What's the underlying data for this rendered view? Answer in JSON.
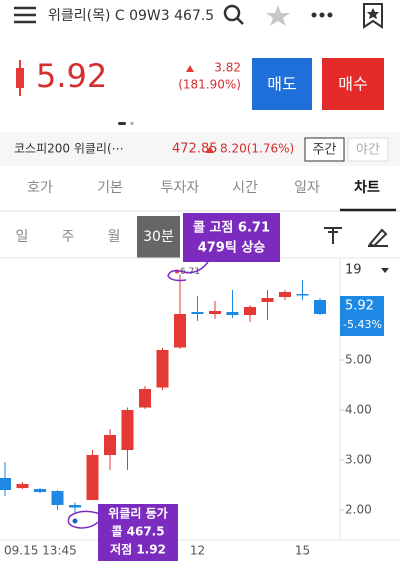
{
  "header": {
    "title": "위클리(목) C 09W3 467.5"
  },
  "quote": {
    "price": "5.92",
    "change": "3.82",
    "change_rate": "(181.90%)",
    "sell": "매도",
    "buy": "매수"
  },
  "underlying": {
    "name": "코스피200 위클리(⋯",
    "price": "472.85",
    "change": "8.20(1.76%)",
    "day": "주간",
    "night": "야간"
  },
  "tabs": [
    "호가",
    "기본",
    "투자자",
    "시간",
    "일자",
    "차트"
  ],
  "periods": [
    "일",
    "주",
    "월",
    "30분"
  ],
  "chart_data": {
    "type": "candlestick",
    "categories": [
      "09.15 13:45",
      null,
      null,
      null,
      null,
      null,
      null,
      null,
      null,
      null,
      null,
      "12",
      null,
      null,
      null,
      null,
      null,
      "15",
      null
    ],
    "open": [
      2.64,
      2.44,
      2.42,
      2.38,
      2.1,
      2.2,
      3.1,
      3.2,
      4.05,
      4.45,
      5.25,
      5.96,
      5.92,
      5.96,
      5.9,
      6.16,
      6.26,
      6.32,
      6.2
    ],
    "high": [
      2.96,
      2.56,
      2.44,
      2.4,
      2.15,
      3.2,
      3.62,
      4.05,
      4.48,
      5.24,
      6.71,
      6.28,
      6.18,
      6.4,
      6.1,
      6.4,
      6.4,
      6.6,
      6.24
    ],
    "low": [
      2.28,
      2.42,
      2.34,
      2.0,
      1.92,
      2.2,
      2.8,
      2.8,
      4.02,
      4.4,
      5.22,
      5.78,
      5.82,
      5.84,
      5.76,
      5.8,
      6.2,
      6.2,
      5.9
    ],
    "close": [
      2.4,
      2.52,
      2.36,
      2.1,
      2.05,
      3.1,
      3.5,
      4.0,
      4.42,
      5.2,
      5.92,
      5.92,
      5.98,
      5.9,
      6.06,
      6.24,
      6.36,
      6.3,
      5.92
    ],
    "up_color": "#e53935",
    "down_color": "#1e88e5",
    "ylim": [
      1.4,
      7.04
    ],
    "yticks": [
      {
        "value": 2,
        "label": "2.00"
      },
      {
        "value": 3,
        "label": "3.00"
      },
      {
        "value": 4,
        "label": "4.00"
      },
      {
        "value": 5,
        "label": "5.00"
      }
    ],
    "last_value": 5.92,
    "last_change": "-5.43%",
    "period_count": "19",
    "peak_label": 6.71,
    "annotations": [
      {
        "lines": [
          "콜 고점 6.71",
          "479틱 상승"
        ]
      },
      {
        "lines": [
          "위클리 등가",
          "콜 467.5",
          "저점 1.92"
        ]
      }
    ]
  }
}
